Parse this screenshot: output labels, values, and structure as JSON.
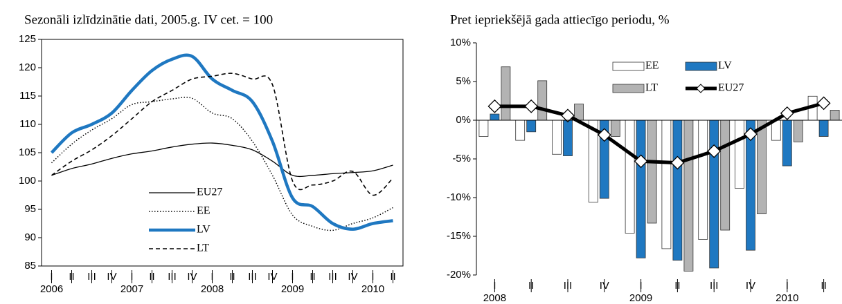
{
  "chart_data": [
    {
      "type": "line",
      "title": "Sezonāli izlīdzinātie dati, 2005.g. IV cet. = 100",
      "categories": [
        "I",
        "II",
        "III",
        "IV",
        "I",
        "II",
        "III",
        "IV",
        "I",
        "II",
        "III",
        "IV",
        "I",
        "II",
        "III",
        "IV",
        "I",
        "II"
      ],
      "year_labels": [
        "2006",
        null,
        null,
        null,
        "2007",
        null,
        null,
        null,
        "2008",
        null,
        null,
        null,
        "2009",
        null,
        null,
        null,
        "2010",
        null
      ],
      "ylim": [
        85,
        125
      ],
      "yticks": [
        85,
        90,
        95,
        100,
        105,
        110,
        115,
        120,
        125
      ],
      "series": [
        {
          "name": "EU27",
          "color": "#000000",
          "style": "solid",
          "width": 1.3,
          "values": [
            101,
            102.2,
            103,
            104,
            104.8,
            105.3,
            106,
            106.5,
            106.7,
            106.3,
            105.5,
            103.5,
            101,
            101,
            101.3,
            101.5,
            101.8,
            102.8
          ]
        },
        {
          "name": "EE",
          "color": "#000000",
          "style": "dotted",
          "width": 1.5,
          "values": [
            103.2,
            106.5,
            109,
            111,
            113.5,
            114,
            114.5,
            114.6,
            112,
            111,
            107,
            101,
            94,
            92,
            91.3,
            92.5,
            93.5,
            95.3
          ]
        },
        {
          "name": "LV",
          "color": "#1f78c1",
          "style": "solid",
          "width": 4.5,
          "values": [
            105,
            108.5,
            110,
            112,
            116,
            119.5,
            121.5,
            122,
            118,
            116,
            114,
            107,
            97,
            95.5,
            92.5,
            91.5,
            92.5,
            93
          ]
        },
        {
          "name": "LT",
          "color": "#000000",
          "style": "dashed",
          "width": 1.6,
          "values": [
            101,
            103.5,
            105.5,
            108,
            111,
            114,
            116,
            118,
            118.5,
            119,
            118,
            117,
            100,
            99.3,
            100,
            101.7,
            97.5,
            100.5
          ]
        }
      ]
    },
    {
      "type": "bar",
      "title": "Pret iepriekšējā gada attiecīgo periodu, %",
      "categories": [
        "I",
        "II",
        "III",
        "IV",
        "I",
        "II",
        "III",
        "IV",
        "I",
        "II"
      ],
      "year_labels": [
        "2008",
        null,
        null,
        null,
        "2009",
        null,
        null,
        null,
        "2010",
        null
      ],
      "ylim": [
        -20,
        10
      ],
      "yticks": [
        {
          "value": -20,
          "label": "-20%"
        },
        {
          "value": -15,
          "label": "-15%"
        },
        {
          "value": -10,
          "label": "-10%"
        },
        {
          "value": -5,
          "label": "-5%"
        },
        {
          "value": 0,
          "label": "0%"
        },
        {
          "value": 5,
          "label": "5%"
        },
        {
          "value": 10,
          "label": "10%"
        }
      ],
      "series": [
        {
          "name": "EE",
          "color": "#ffffff",
          "values": [
            -2.1,
            -2.6,
            -4.4,
            -10.6,
            -14.6,
            -16.6,
            -15.4,
            -8.8,
            -2.6,
            3.1
          ]
        },
        {
          "name": "LV",
          "color": "#1f78c1",
          "values": [
            0.8,
            -1.5,
            -4.6,
            -10.1,
            -17.8,
            -18.1,
            -19.1,
            -16.8,
            -5.9,
            -2.1
          ]
        },
        {
          "name": "LT",
          "color": "#b3b3b3",
          "values": [
            6.9,
            5.1,
            2.1,
            -2.1,
            -13.3,
            -19.5,
            -14.2,
            -12.1,
            -2.8,
            1.3
          ]
        },
        {
          "name": "EU27",
          "color": "#000000",
          "type": "line",
          "values": [
            1.8,
            1.8,
            0.6,
            -1.9,
            -5.3,
            -5.5,
            -4.0,
            -1.8,
            0.9,
            2.2
          ]
        }
      ]
    }
  ]
}
